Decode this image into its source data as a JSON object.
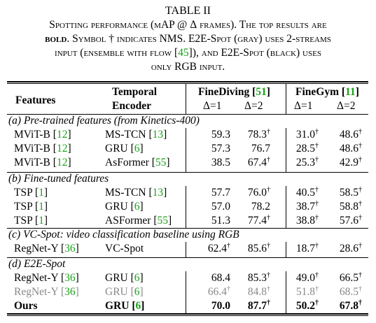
{
  "table_number": "TABLE II",
  "caption": {
    "line1_a": "Spotting performance (mAP @ ",
    "line1_delta": "Δ",
    "line1_b": " frames). The top results are",
    "line2_bold": "bold",
    "line2_rest": ". Symbol † indicates NMS. E2E-Spot (gray) uses 2-streams",
    "line3_a": "input (ensemble with flow [",
    "line3_cite": "45",
    "line3_b": "]), and E2E-Spot (black) uses",
    "line4": "only RGB input."
  },
  "headers": {
    "features": "Features",
    "temporal": "Temporal",
    "encoder": "Encoder",
    "finediving": "FineDiving [",
    "finediving_cite": "51",
    "finegym": "FineGym [",
    "finegym_cite": "11",
    "close": "]",
    "d1": "Δ=1",
    "d2": "Δ=2"
  },
  "sections": {
    "a": "(a) Pre-trained features (from Kinetics-400)",
    "b": "(b) Fine-tuned features",
    "c": "(c) VC-Spot: video classification baseline using RGB",
    "d": "(d) E2E-Spot"
  },
  "rows": [
    {
      "feat": "MViT-B [",
      "feat_cite": "12",
      "enc": "MS-TCN [",
      "enc_cite": "13",
      "v1": "59.3",
      "v2": "78.3",
      "v3": "31.0",
      "v4": "48.6",
      "s": [
        false,
        true,
        true,
        true
      ]
    },
    {
      "feat": "MViT-B [",
      "feat_cite": "12",
      "enc": "GRU [",
      "enc_cite": "6",
      "v1": "57.3",
      "v2": "76.7",
      "v3": "28.5",
      "v4": "48.6",
      "s": [
        false,
        false,
        true,
        true
      ]
    },
    {
      "feat": "MViT-B [",
      "feat_cite": "12",
      "enc": "AsFormer [",
      "enc_cite": "55",
      "v1": "38.5",
      "v2": "67.4",
      "v3": "25.3",
      "v4": "42.9",
      "s": [
        false,
        true,
        true,
        true
      ]
    },
    {
      "feat": "TSP [",
      "feat_cite": "1",
      "enc": "MS-TCN [",
      "enc_cite": "13",
      "v1": "57.7",
      "v2": "76.0",
      "v3": "40.5",
      "v4": "58.5",
      "s": [
        false,
        true,
        true,
        true
      ]
    },
    {
      "feat": "TSP [",
      "feat_cite": "1",
      "enc": "GRU [",
      "enc_cite": "6",
      "v1": "57.0",
      "v2": "78.2",
      "v3": "38.7",
      "v4": "58.8",
      "s": [
        false,
        false,
        true,
        true
      ]
    },
    {
      "feat": "TSP [",
      "feat_cite": "1",
      "enc": "ASFormer [",
      "enc_cite": "55",
      "v1": "51.3",
      "v2": "77.4",
      "v3": "38.8",
      "v4": "57.6",
      "s": [
        false,
        true,
        true,
        true
      ]
    },
    {
      "feat": "RegNet-Y [",
      "feat_cite": "36",
      "enc": "VC-Spot",
      "enc_cite": "",
      "v1": "62.4",
      "v2": "85.6",
      "v3": "18.7",
      "v4": "28.6",
      "s": [
        true,
        true,
        true,
        true
      ]
    },
    {
      "feat": "RegNet-Y [",
      "feat_cite": "36",
      "enc": "GRU [",
      "enc_cite": "6",
      "v1": "68.4",
      "v2": "85.3",
      "v3": "49.0",
      "v4": "66.5",
      "s": [
        false,
        true,
        true,
        true
      ]
    },
    {
      "feat": "RegNet-Y [",
      "feat_cite": "36",
      "enc": "GRU [",
      "enc_cite": "6",
      "v1": "66.4",
      "v2": "84.8",
      "v3": "51.8",
      "v4": "68.5",
      "s": [
        true,
        true,
        true,
        true
      ]
    },
    {
      "feat": "Ours",
      "feat_cite": "",
      "enc": "GRU [",
      "enc_cite": "6",
      "v1": "70.0",
      "v2": "87.7",
      "v3": "50.2",
      "v4": "67.8",
      "s": [
        false,
        true,
        true,
        true
      ]
    }
  ],
  "dagger": "†",
  "close_bracket": "]",
  "colors": {
    "citation": "#19a319",
    "gray_row": "#8a8a8a"
  }
}
